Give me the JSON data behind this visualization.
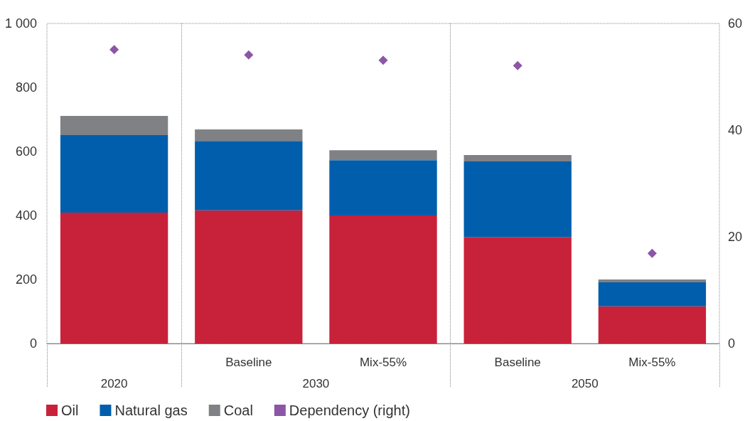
{
  "chart_data": {
    "type": "bar",
    "stacked": true,
    "categories": [
      null,
      "Baseline",
      "Mix-55%",
      "Baseline",
      "Mix-55%"
    ],
    "annotations": [
      "2020",
      "2030",
      "2050"
    ],
    "series": [
      {
        "name": "Oil",
        "color": "#c8223a",
        "values": [
          409,
          416,
          400,
          333,
          116
        ]
      },
      {
        "name": "Natural gas",
        "color": "#005eac",
        "values": [
          242,
          217,
          173,
          236,
          75
        ]
      },
      {
        "name": "Coal",
        "color": "#808184",
        "values": [
          60,
          36,
          31,
          20,
          9
        ]
      },
      {
        "name": "Dependency (right)",
        "type": "scatter",
        "axis": "y2",
        "color": "#6f2c91",
        "values": [
          55.1,
          54.1,
          53.1,
          52.1,
          16.9
        ]
      }
    ],
    "ylim": [
      0,
      1000
    ],
    "yticks": [
      0,
      200,
      400,
      600,
      800,
      {
        "value": 1000,
        "label": "1 000"
      }
    ],
    "y2lim": [
      0,
      60
    ],
    "y2ticks": [
      0,
      20,
      40,
      60
    ],
    "grid": false,
    "legend": "bottom left",
    "marker": "diamond"
  }
}
